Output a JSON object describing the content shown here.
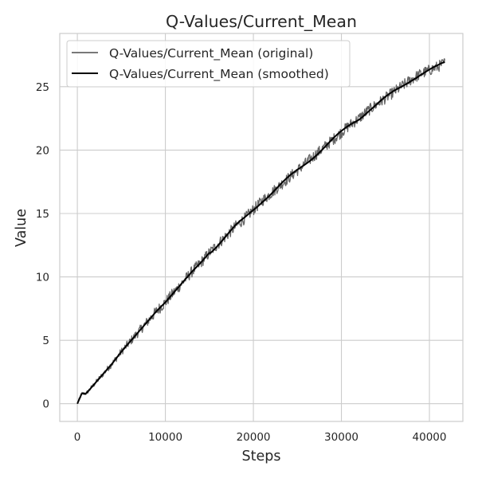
{
  "chart_data": {
    "type": "line",
    "title": "Q-Values/Current_Mean",
    "xlabel": "Steps",
    "ylabel": "Value",
    "xlim": [
      -2000,
      43800
    ],
    "ylim": [
      -1.4,
      29.2
    ],
    "x_ticks": [
      0,
      10000,
      20000,
      30000,
      40000
    ],
    "x_tick_labels": [
      "0",
      "10000",
      "20000",
      "30000",
      "40000"
    ],
    "y_ticks": [
      0,
      5,
      10,
      15,
      20,
      25
    ],
    "y_tick_labels": [
      "0",
      "5",
      "10",
      "15",
      "20",
      "25"
    ],
    "grid": true,
    "legend_position": "upper-left",
    "series": [
      {
        "name": "Q-Values/Current_Mean (original)",
        "color": "#666666",
        "style": "noisy",
        "x": [
          0,
          500,
          1000,
          2000,
          3000,
          4000,
          5000,
          6000,
          7000,
          8000,
          9000,
          10000,
          11000,
          12000,
          13000,
          14000,
          15000,
          16000,
          17000,
          18000,
          19000,
          20000,
          21000,
          22000,
          23000,
          24000,
          25000,
          26000,
          27000,
          28000,
          29000,
          30000,
          31000,
          32000,
          33000,
          34000,
          35000,
          36000,
          37000,
          38000,
          39000,
          40000,
          41000,
          41800
        ],
        "y": [
          0,
          0.8,
          0.8,
          1.6,
          2.4,
          3.2,
          4.1,
          4.9,
          5.7,
          6.5,
          7.3,
          8.0,
          8.8,
          9.6,
          10.4,
          11.1,
          11.9,
          12.6,
          13.3,
          14.0,
          14.6,
          15.3,
          16.0,
          16.6,
          17.2,
          17.8,
          18.4,
          19.0,
          19.6,
          20.2,
          20.8,
          21.4,
          22.0,
          22.5,
          23.1,
          23.6,
          24.1,
          24.6,
          25.1,
          25.6,
          26.0,
          26.3,
          26.6,
          26.9
        ],
        "noise_amplitude": 0.45
      },
      {
        "name": "Q-Values/Current_Mean (smoothed)",
        "color": "#000000",
        "style": "smooth",
        "x": [
          0,
          500,
          1000,
          2000,
          3000,
          4000,
          5000,
          6000,
          7000,
          8000,
          9000,
          10000,
          11000,
          12000,
          13000,
          14000,
          15000,
          16000,
          17000,
          18000,
          19000,
          20000,
          21000,
          22000,
          23000,
          24000,
          25000,
          26000,
          27000,
          28000,
          29000,
          30000,
          31000,
          32000,
          33000,
          34000,
          35000,
          36000,
          37000,
          38000,
          39000,
          40000,
          41000,
          41800
        ],
        "y": [
          0,
          0.8,
          0.8,
          1.6,
          2.4,
          3.2,
          4.1,
          4.9,
          5.7,
          6.5,
          7.3,
          8.0,
          8.8,
          9.6,
          10.4,
          11.1,
          11.9,
          12.6,
          13.3,
          14.0,
          14.6,
          15.3,
          16.0,
          16.6,
          17.2,
          17.8,
          18.4,
          19.0,
          19.6,
          20.2,
          20.8,
          21.4,
          22.0,
          22.5,
          23.1,
          23.6,
          24.1,
          24.6,
          25.1,
          25.6,
          26.0,
          26.3,
          26.6,
          26.9
        ]
      }
    ],
    "colors": {
      "background": "#ffffff",
      "plot_background": "#ffffff",
      "grid": "#cccccc",
      "spine": "#cccccc",
      "text": "#262626"
    }
  }
}
